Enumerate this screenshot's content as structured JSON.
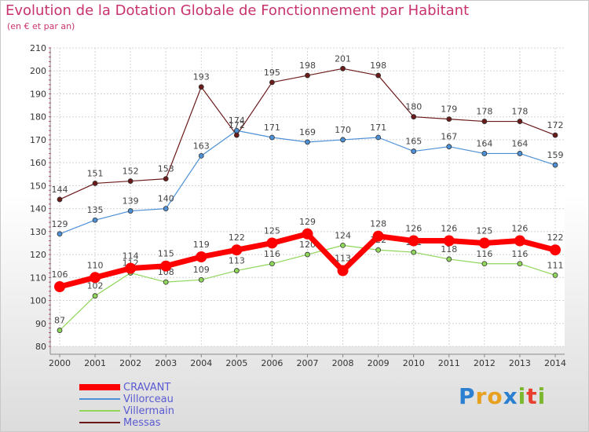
{
  "title": "Evolution de la Dotation Globale de Fonctionnement par Habitant",
  "subtitle": "(en € et par an)",
  "brand": [
    "P",
    "r",
    "o",
    "x",
    "i",
    "t",
    "i"
  ],
  "brand_colors": [
    "#2b7fd0",
    "#e8a020",
    "#e8a020",
    "#2b7fd0",
    "#7cb82f",
    "#e84030",
    "#7cb82f"
  ],
  "chart_data": {
    "type": "line",
    "title": "Evolution de la Dotation Globale de Fonctionnement par Habitant",
    "subtitle": "(en € et par an)",
    "x": [
      2000,
      2001,
      2002,
      2003,
      2004,
      2005,
      2006,
      2007,
      2008,
      2009,
      2010,
      2011,
      2012,
      2013,
      2014
    ],
    "ylim": [
      80,
      210
    ],
    "yticks": [
      80,
      90,
      100,
      110,
      120,
      130,
      140,
      150,
      160,
      170,
      180,
      190,
      200,
      210
    ],
    "grid": true,
    "legend": "bottom-left",
    "series": [
      {
        "name": "Messas",
        "color": "#6b1a1a",
        "values": [
          144,
          151,
          152,
          153,
          193,
          172,
          195,
          198,
          201,
          198,
          180,
          179,
          178,
          178,
          172
        ]
      },
      {
        "name": "Villorceau",
        "color": "#4d90d6",
        "values": [
          129,
          135,
          139,
          140,
          163,
          174,
          171,
          169,
          170,
          171,
          165,
          167,
          164,
          164,
          159
        ]
      },
      {
        "name": "Villermain",
        "color": "#8fd65a",
        "values": [
          87,
          102,
          112,
          108,
          109,
          113,
          116,
          120,
          124,
          122,
          121,
          118,
          116,
          116,
          111
        ]
      },
      {
        "name": "CRAVANT",
        "color": "#ff0000",
        "values": [
          106,
          110,
          114,
          115,
          119,
          122,
          125,
          129,
          113,
          128,
          126,
          126,
          125,
          126,
          122
        ]
      }
    ],
    "legend_order": [
      "CRAVANT",
      "Villorceau",
      "Villermain",
      "Messas"
    ]
  }
}
